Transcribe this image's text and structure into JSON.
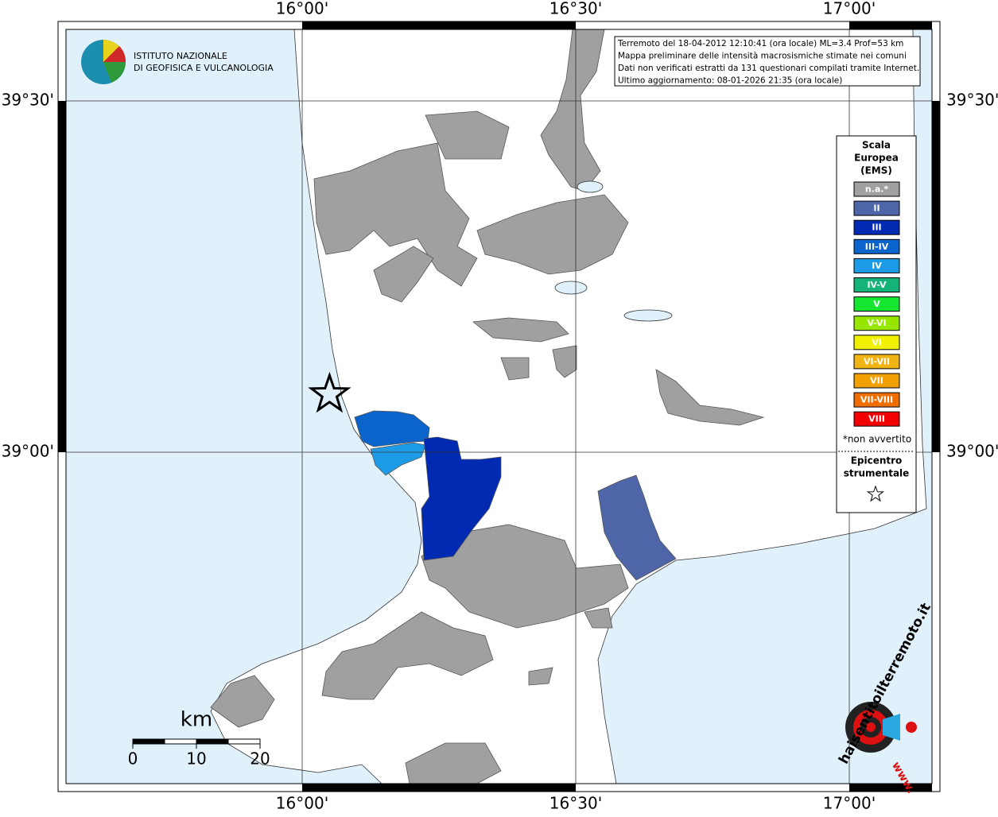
{
  "map": {
    "info_lines": [
      "Terremoto del 18-04-2012 12:10:41 (ora locale) ML=3.4 Prof=53 km",
      "Mappa preliminare delle intensità macrosismiche stimate nei comuni",
      "Dati non verificati estratti da 131 questionari compilati tramite Internet.",
      "Ultimo aggiornamento: 08-01-2026 21:35 (ora locale)"
    ],
    "lon_ticks": [
      {
        "value": 16,
        "label": "16°00'"
      },
      {
        "value": 16.5,
        "label": "16°30'"
      },
      {
        "value": 17,
        "label": "17°00'"
      }
    ],
    "lat_ticks": [
      {
        "value": 39.5,
        "label": "39°30'"
      },
      {
        "value": 39,
        "label": "39°00'"
      }
    ],
    "epicenter": {
      "lon": 16.05,
      "lat": 39.08
    },
    "ingv_logo": [
      "ISTITUTO NAZIONALE",
      "DI GEOFISICA E VULCANOLOGIA"
    ],
    "hsit_logo": {
      "name": "haisentitoilterremoto.it",
      "prefix": "www."
    },
    "legend": {
      "title": [
        "Scala",
        "Europea",
        "(EMS)"
      ],
      "items": [
        {
          "label": "n.a.*",
          "color": "#a0a0a0"
        },
        {
          "label": "II",
          "color": "#4e65a8"
        },
        {
          "label": "III",
          "color": "#002ab2"
        },
        {
          "label": "III-IV",
          "color": "#0a64cc"
        },
        {
          "label": "IV",
          "color": "#1e9be6"
        },
        {
          "label": "IV-V",
          "color": "#14b478"
        },
        {
          "label": "V",
          "color": "#14e632"
        },
        {
          "label": "V-VI",
          "color": "#96e600"
        },
        {
          "label": "VI",
          "color": "#f0f000"
        },
        {
          "label": "VI-VII",
          "color": "#f0b414"
        },
        {
          "label": "VII",
          "color": "#f0a000"
        },
        {
          "label": "VII-VIII",
          "color": "#f06e00"
        },
        {
          "label": "VIII",
          "color": "#f00000"
        }
      ],
      "note": "*non avvertito",
      "epicenter_label": [
        "Epicentro",
        "strumentale"
      ]
    },
    "scale": {
      "unit": "km",
      "ticks": [
        0,
        10,
        20
      ]
    }
  }
}
